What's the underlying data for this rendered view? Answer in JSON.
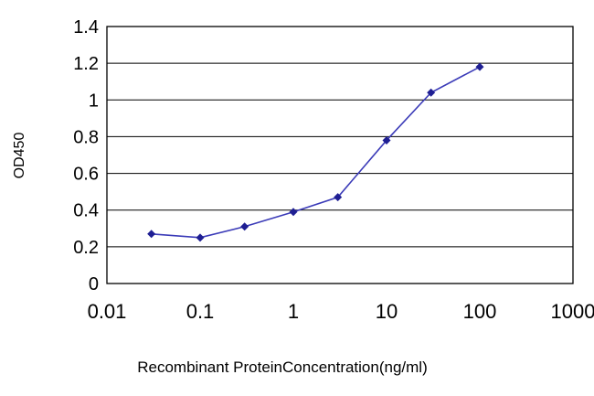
{
  "chart_data": {
    "type": "line",
    "title": "",
    "xlabel": "Recombinant ProteinConcentration(ng/ml)",
    "ylabel": "OD450",
    "xscale": "log",
    "xlim": [
      0.01,
      1000
    ],
    "ylim": [
      0,
      1.4
    ],
    "xticks": [
      0.01,
      0.1,
      1,
      10,
      100,
      1000
    ],
    "xtick_labels": [
      "0.01",
      "0.1",
      "1",
      "10",
      "100",
      "1000"
    ],
    "yticks": [
      0,
      0.2,
      0.4,
      0.6,
      0.8,
      1,
      1.2,
      1.4
    ],
    "ytick_labels": [
      "0",
      "0.2",
      "0.4",
      "0.6",
      "0.8",
      "1",
      "1.2",
      "1.4"
    ],
    "grid": "horizontal",
    "legend": "none",
    "colors": {
      "line": "#3b3bb8",
      "marker": "#1f1f93",
      "grid": "#000000",
      "border": "#000000",
      "background": "#ffffff"
    },
    "series": [
      {
        "name": "OD450",
        "x": [
          0.03,
          0.1,
          0.3,
          1,
          3,
          10,
          30,
          100
        ],
        "y": [
          0.27,
          0.25,
          0.31,
          0.39,
          0.47,
          0.78,
          1.04,
          1.18
        ],
        "marker": "diamond"
      }
    ]
  }
}
